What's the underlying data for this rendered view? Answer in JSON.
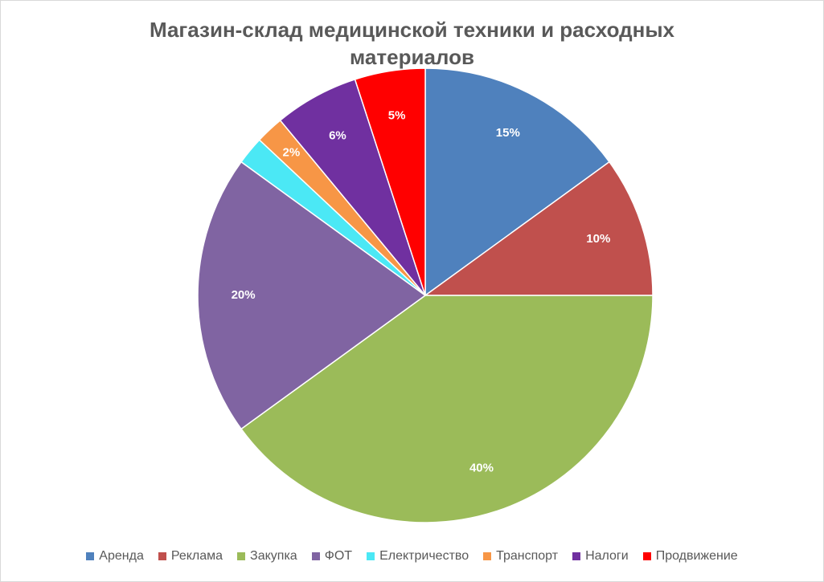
{
  "chart_data": {
    "type": "pie",
    "title": "Магазин-склад медицинской техники и расходных материалов",
    "categories": [
      "Аренда",
      "Реклама",
      "Закупка",
      "ФОТ",
      "Електричество",
      "Транспорт",
      "Налоги",
      "Продвижение"
    ],
    "values": [
      15,
      10,
      40,
      20,
      2,
      2,
      6,
      5
    ],
    "labels": [
      "15%",
      "10%",
      "40%",
      "20%",
      "",
      "2%",
      "6%",
      "5%"
    ],
    "colors": [
      "#4F81BD",
      "#C0504D",
      "#9BBB59",
      "#8064A2",
      "#4BE8F5",
      "#F79646",
      "#7030A0",
      "#FF0000"
    ],
    "legend_position": "bottom"
  }
}
